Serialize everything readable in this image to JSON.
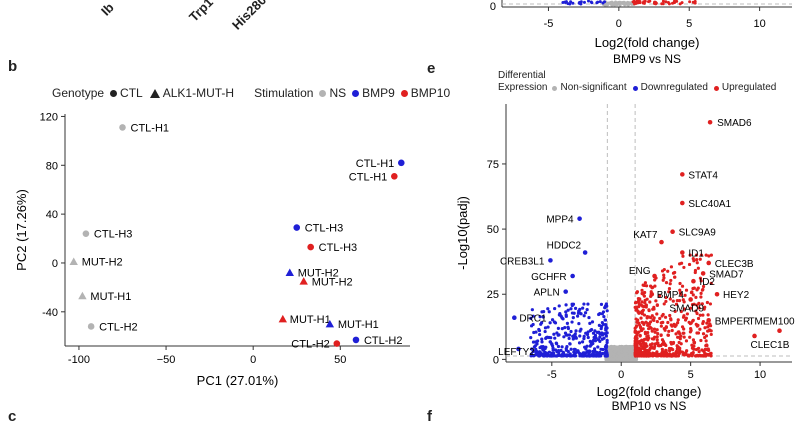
{
  "top_fragments": {
    "rotated_labels": [
      "Ib",
      "Trp1",
      "His280"
    ],
    "xticks": [
      {
        "value": -5,
        "label": "-5"
      },
      {
        "value": 0,
        "label": "0"
      },
      {
        "value": 5,
        "label": "5"
      },
      {
        "value": 10,
        "label": "10"
      }
    ],
    "yticks": [
      {
        "value": 0,
        "label": "0"
      }
    ],
    "xlabel": "Log2(fold change)",
    "title": "BMP9 vs NS",
    "bottom_cut_labels": [
      "c",
      "f"
    ]
  },
  "panel_b": {
    "label": "b",
    "legend": {
      "genotype_title": "Genotype",
      "genotype_items": [
        {
          "label": "CTL",
          "shape": "circle"
        },
        {
          "label": "ALK1-MUT-H",
          "shape": "triangle"
        }
      ],
      "stim_title": "Stimulation",
      "stim_items": [
        {
          "label": "NS",
          "color": "#b3b3b3"
        },
        {
          "label": "BMP9",
          "color": "#1f1fd6"
        },
        {
          "label": "BMP10",
          "color": "#e02020"
        }
      ]
    }
  },
  "panel_e": {
    "label": "e",
    "legend": {
      "title_line1": "Differential",
      "title_line2": "Expression",
      "items": [
        {
          "label": "Non-significant",
          "color": "#b3b3b3"
        },
        {
          "label": "Downregulated",
          "color": "#1f1fd6"
        },
        {
          "label": "Upregulated",
          "color": "#e02020"
        }
      ]
    }
  },
  "chart_data": [
    {
      "type": "scatter",
      "title": "",
      "xlabel": "PC1 (27.01%)",
      "ylabel": "PC2 (17.26%)",
      "xlim": [
        -108,
        90
      ],
      "ylim": [
        -68,
        122
      ],
      "xticks": [
        {
          "value": -100,
          "label": "-100"
        },
        {
          "value": -50,
          "label": "−50"
        },
        {
          "value": 0,
          "label": "0"
        },
        {
          "value": 50,
          "label": "50"
        }
      ],
      "yticks": [
        {
          "value": 120,
          "label": "120"
        },
        {
          "value": 80,
          "label": "80"
        },
        {
          "value": 40,
          "label": "40"
        },
        {
          "value": 0,
          "label": "0"
        },
        {
          "value": -40,
          "label": "-40"
        }
      ],
      "points": [
        {
          "label": "CTL-H1",
          "x": -75,
          "y": 111,
          "shape": "circle",
          "stim": "NS"
        },
        {
          "label": "CTL-H3",
          "x": -96,
          "y": 24,
          "shape": "circle",
          "stim": "NS"
        },
        {
          "label": "MUT-H2",
          "x": -103,
          "y": 1,
          "shape": "triangle",
          "stim": "NS"
        },
        {
          "label": "MUT-H1",
          "x": -98,
          "y": -27,
          "shape": "triangle",
          "stim": "NS"
        },
        {
          "label": "CTL-H2",
          "x": -93,
          "y": -52,
          "shape": "circle",
          "stim": "NS"
        },
        {
          "label": "CTL-H1",
          "x": 85,
          "y": 82,
          "shape": "circle",
          "stim": "BMP9"
        },
        {
          "label": "CTL-H1",
          "x": 81,
          "y": 71,
          "shape": "circle",
          "stim": "BMP10"
        },
        {
          "label": "CTL-H3",
          "x": 25,
          "y": 29,
          "shape": "circle",
          "stim": "BMP9"
        },
        {
          "label": "CTL-H3",
          "x": 33,
          "y": 13,
          "shape": "circle",
          "stim": "BMP10"
        },
        {
          "label": "MUT-H2",
          "x": 21,
          "y": -8,
          "shape": "triangle",
          "stim": "BMP9"
        },
        {
          "label": "MUT-H2",
          "x": 29,
          "y": -15,
          "shape": "triangle",
          "stim": "BMP10"
        },
        {
          "label": "MUT-H1",
          "x": 17,
          "y": -46,
          "shape": "triangle",
          "stim": "BMP10"
        },
        {
          "label": "MUT-H1",
          "x": 44,
          "y": -50,
          "shape": "triangle",
          "stim": "BMP9"
        },
        {
          "label": "CTL-H2",
          "x": 48,
          "y": -66,
          "shape": "circle",
          "stim": "BMP10"
        },
        {
          "label": "CTL-H2",
          "x": 59,
          "y": -63,
          "shape": "circle",
          "stim": "BMP9"
        }
      ]
    },
    {
      "type": "scatter",
      "title": "BMP10 vs NS",
      "xlabel": "Log2(fold change)",
      "ylabel": "-Log10(padj)",
      "xlim": [
        -8.3,
        12.3
      ],
      "ylim": [
        -1,
        98
      ],
      "vlines": [
        -1,
        1
      ],
      "hline": 1.3,
      "xticks": [
        {
          "value": -5,
          "label": "-5"
        },
        {
          "value": 0,
          "label": "0"
        },
        {
          "value": 5,
          "label": "5"
        },
        {
          "value": 10,
          "label": "10"
        }
      ],
      "yticks": [
        {
          "value": 75,
          "label": "75"
        },
        {
          "value": 50,
          "label": "50"
        },
        {
          "value": 25,
          "label": "25"
        },
        {
          "value": 0,
          "label": "0"
        }
      ],
      "labeled_genes": [
        {
          "gene": "SMAD6",
          "x": 6.4,
          "y": 91,
          "reg": "up"
        },
        {
          "gene": "STAT4",
          "x": 4.4,
          "y": 71,
          "reg": "up"
        },
        {
          "gene": "SLC40A1",
          "x": 4.4,
          "y": 60,
          "reg": "up"
        },
        {
          "gene": "SLC9A9",
          "x": 3.7,
          "y": 49,
          "reg": "up"
        },
        {
          "gene": "KAT7",
          "x": 2.9,
          "y": 45,
          "reg": "up"
        },
        {
          "gene": "ID1",
          "x": 4.4,
          "y": 41,
          "reg": "up"
        },
        {
          "gene": "CLEC3B",
          "x": 6.3,
          "y": 37,
          "reg": "up"
        },
        {
          "gene": "SMAD7",
          "x": 5.9,
          "y": 33,
          "reg": "up"
        },
        {
          "gene": "ID2",
          "x": 5.2,
          "y": 30,
          "reg": "up"
        },
        {
          "gene": "ENG",
          "x": 2.4,
          "y": 32,
          "reg": "up"
        },
        {
          "gene": "HEY2",
          "x": 6.9,
          "y": 25,
          "reg": "up"
        },
        {
          "gene": "BMP4",
          "x": 2.2,
          "y": 25,
          "reg": "up"
        },
        {
          "gene": "SMAD9",
          "x": 5.0,
          "y": 23,
          "reg": "up"
        },
        {
          "gene": "BMPER",
          "x": 6.3,
          "y": 15,
          "reg": "up"
        },
        {
          "gene": "TMEM100",
          "x": 11.4,
          "y": 11,
          "reg": "up"
        },
        {
          "gene": "CLEC1B",
          "x": 9.6,
          "y": 9,
          "reg": "up"
        },
        {
          "gene": "MPP4",
          "x": -3.0,
          "y": 54,
          "reg": "down"
        },
        {
          "gene": "HDDC2",
          "x": -2.6,
          "y": 41,
          "reg": "down"
        },
        {
          "gene": "CREB3L1",
          "x": -5.1,
          "y": 38,
          "reg": "down"
        },
        {
          "gene": "GCHFR",
          "x": -3.5,
          "y": 32,
          "reg": "down"
        },
        {
          "gene": "APLN",
          "x": -4.0,
          "y": 26,
          "reg": "down"
        },
        {
          "gene": "DRC1",
          "x": -7.7,
          "y": 16,
          "reg": "down"
        },
        {
          "gene": "LEFTY2",
          "x": -7.4,
          "y": 4,
          "reg": "down"
        }
      ]
    }
  ]
}
